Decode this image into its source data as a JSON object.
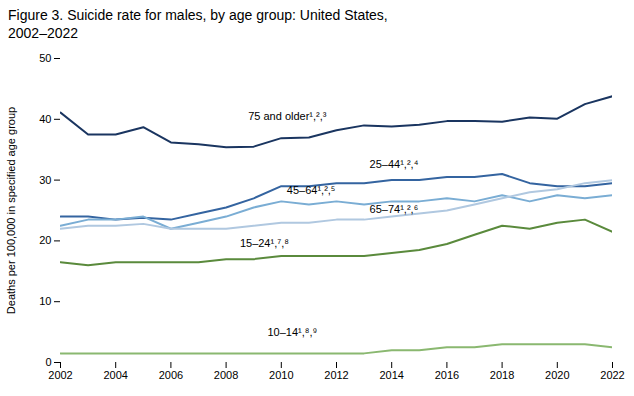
{
  "chart_data": {
    "type": "line",
    "title": "Figure 3. Suicide rate for males, by age group: United States,",
    "subtitle": "2002–2022",
    "ylabel": "Deaths per 100,000 in specified age group",
    "x": [
      2002,
      2003,
      2004,
      2005,
      2006,
      2007,
      2008,
      2009,
      2010,
      2011,
      2012,
      2013,
      2014,
      2015,
      2016,
      2017,
      2018,
      2019,
      2020,
      2021,
      2022
    ],
    "series": [
      {
        "name": "75 and older¹,²,³",
        "color": "#1a3560",
        "label_x": 2008.8,
        "label_y": 40.5,
        "values": [
          41.1,
          37.5,
          37.5,
          38.7,
          36.2,
          35.9,
          35.4,
          35.5,
          36.9,
          37.0,
          38.2,
          39.0,
          38.8,
          39.1,
          39.7,
          39.7,
          39.6,
          40.3,
          40.1,
          42.5,
          43.8
        ]
      },
      {
        "name": "25–44¹,²,⁴",
        "color": "#3464a0",
        "label_x": 2013.2,
        "label_y": 32.5,
        "values": [
          24.0,
          24.0,
          23.5,
          23.8,
          23.5,
          24.5,
          25.5,
          27.0,
          29.0,
          29.0,
          29.5,
          29.5,
          30.0,
          30.0,
          30.5,
          30.5,
          31.0,
          29.5,
          29.0,
          29.0,
          29.5
        ]
      },
      {
        "name": "45–64¹,²,⁵",
        "color": "#7aadd4",
        "label_x": 2010.2,
        "label_y": 28.3,
        "values": [
          22.5,
          23.5,
          23.5,
          24.0,
          22.0,
          23.0,
          24.0,
          25.5,
          26.5,
          26.0,
          26.5,
          26.0,
          26.5,
          26.5,
          27.0,
          26.5,
          27.5,
          26.5,
          27.5,
          27.0,
          27.5
        ]
      },
      {
        "name": "65–74¹,²,⁶",
        "color": "#b0c8e0",
        "label_x": 2013.2,
        "label_y": 25.2,
        "values": [
          22.0,
          22.5,
          22.5,
          22.8,
          22.0,
          22.0,
          22.0,
          22.5,
          23.0,
          23.0,
          23.5,
          23.5,
          24.0,
          24.5,
          25.0,
          26.0,
          27.0,
          28.0,
          28.5,
          29.5,
          30.0
        ]
      },
      {
        "name": "15–24¹,⁷,⁸",
        "color": "#5a8a3c",
        "label_x": 2008.5,
        "label_y": 19.6,
        "values": [
          16.5,
          16.0,
          16.5,
          16.5,
          16.5,
          16.5,
          17.0,
          17.0,
          17.5,
          17.5,
          17.5,
          17.5,
          18.0,
          18.5,
          19.5,
          21.0,
          22.5,
          22.0,
          23.0,
          23.5,
          21.5
        ]
      },
      {
        "name": "10–14¹,⁸,⁹",
        "color": "#8ab870",
        "label_x": 2009.5,
        "label_y": 5.0,
        "values": [
          1.5,
          1.5,
          1.5,
          1.5,
          1.5,
          1.5,
          1.5,
          1.5,
          1.5,
          1.5,
          1.5,
          1.5,
          2.0,
          2.0,
          2.5,
          2.5,
          3.0,
          3.0,
          3.0,
          3.0,
          2.5
        ]
      }
    ],
    "xlim": [
      2002,
      2022
    ],
    "xticks": [
      2002,
      2004,
      2006,
      2008,
      2010,
      2012,
      2014,
      2016,
      2018,
      2020,
      2022
    ],
    "ylim": [
      0,
      50
    ],
    "yticks": [
      0,
      10,
      20,
      30,
      40,
      50
    ],
    "grid": false
  }
}
